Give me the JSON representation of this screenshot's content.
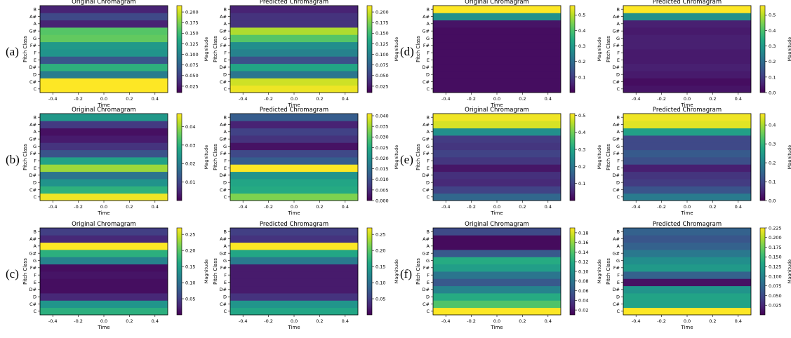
{
  "colormap": "viridis",
  "pitch_classes": [
    "C",
    "C#",
    "D",
    "D#",
    "E",
    "F",
    "F#",
    "G",
    "G#",
    "A",
    "A#",
    "B"
  ],
  "x_ticks": [
    "-0.4",
    "-0.2",
    "0.0",
    "0.2",
    "0.4"
  ],
  "chart_data": [
    {
      "panel": "(a)",
      "charts": [
        {
          "type": "heatmap",
          "title": "Original Chromagram",
          "xlabel": "Time",
          "ylabel": "Pitch Class",
          "xlim": [
            -0.5,
            0.5
          ],
          "values": [
            0.215,
            0.215,
            0.095,
            0.14,
            0.065,
            0.115,
            0.12,
            0.165,
            0.16,
            0.03,
            0.055,
            0.03
          ],
          "colorbar": {
            "label": "Magnitude",
            "min": 0.01,
            "max": 0.215,
            "ticks": [
              "0.025",
              "0.050",
              "0.075",
              "0.100",
              "0.125",
              "0.150",
              "0.175",
              "0.200"
            ]
          }
        },
        {
          "type": "heatmap",
          "title": "Predicted Chromagram",
          "xlabel": "Time",
          "ylabel": "Pitch Class",
          "xlim": [
            -0.5,
            0.5
          ],
          "values": [
            0.21,
            0.2,
            0.09,
            0.13,
            0.06,
            0.1,
            0.11,
            0.16,
            0.19,
            0.04,
            0.04,
            0.03
          ],
          "colorbar": {
            "label": "Magnitude",
            "min": 0.01,
            "max": 0.215,
            "ticks": [
              "0.025",
              "0.050",
              "0.075",
              "0.100",
              "0.125",
              "0.150",
              "0.175",
              "0.200"
            ]
          }
        }
      ]
    },
    {
      "panel": "(b)",
      "charts": [
        {
          "type": "heatmap",
          "title": "Original Chromagram",
          "xlabel": "Time",
          "ylabel": "Pitch Class",
          "xlim": [
            -0.5,
            0.5
          ],
          "values": [
            0.046,
            0.03,
            0.024,
            0.018,
            0.04,
            0.027,
            0.012,
            0.007,
            0.0035,
            0.002,
            0.008,
            0.025
          ],
          "colorbar": {
            "label": "Magnitude",
            "min": 0.0,
            "max": 0.047,
            "ticks": [
              "0.01",
              "0.02",
              "0.03",
              "0.04"
            ]
          }
        },
        {
          "type": "heatmap",
          "title": "Predicted Chromagram",
          "xlabel": "Time",
          "ylabel": "Pitch Class",
          "xlim": [
            -0.5,
            0.5
          ],
          "values": [
            0.033,
            0.025,
            0.024,
            0.021,
            0.041,
            0.012,
            0.009,
            0.002,
            0.006,
            0.008,
            0.004,
            0.012
          ],
          "colorbar": {
            "label": "Magnitude",
            "min": 0.0,
            "max": 0.041,
            "ticks": [
              "0.000",
              "0.005",
              "0.010",
              "0.015",
              "0.020",
              "0.025",
              "0.030",
              "0.035",
              "0.040"
            ]
          }
        }
      ]
    },
    {
      "panel": "(c)",
      "charts": [
        {
          "type": "heatmap",
          "title": "Original Chromagram",
          "xlabel": "Time",
          "ylabel": "Pitch Class",
          "xlim": [
            -0.5,
            0.5
          ],
          "values": [
            0.17,
            0.14,
            0.03,
            0.01,
            0.01,
            0.015,
            0.01,
            0.12,
            0.17,
            0.27,
            0.03,
            0.05
          ],
          "colorbar": {
            "label": "Magnitude",
            "min": 0.0,
            "max": 0.27,
            "ticks": [
              "0.05",
              "0.10",
              "0.15",
              "0.20",
              "0.25"
            ]
          }
        },
        {
          "type": "heatmap",
          "title": "Predicted Chromagram",
          "xlabel": "Time",
          "ylabel": "Pitch Class",
          "xlim": [
            -0.5,
            0.5
          ],
          "values": [
            0.16,
            0.14,
            0.04,
            0.02,
            0.02,
            0.02,
            0.02,
            0.11,
            0.16,
            0.27,
            0.04,
            0.05
          ],
          "colorbar": {
            "label": "Magnitude",
            "min": 0.0,
            "max": 0.27,
            "ticks": [
              "0.05",
              "0.10",
              "0.15",
              "0.20",
              "0.25"
            ]
          }
        }
      ]
    },
    {
      "panel": "(d)",
      "charts": [
        {
          "type": "heatmap",
          "title": "Original Chromagram",
          "xlabel": "Time",
          "ylabel": "Pitch Class",
          "xlim": [
            -0.5,
            0.5
          ],
          "values": [
            0.02,
            0.02,
            0.02,
            0.02,
            0.02,
            0.02,
            0.02,
            0.02,
            0.02,
            0.03,
            0.28,
            0.56
          ],
          "colorbar": {
            "label": "Magnitude",
            "min": 0.0,
            "max": 0.56,
            "ticks": [
              "0.1",
              "0.2",
              "0.3",
              "0.4",
              "0.5"
            ]
          }
        },
        {
          "type": "heatmap",
          "title": "Predicted Chromagram",
          "xlabel": "Time",
          "ylabel": "Pitch Class",
          "xlim": [
            -0.5,
            0.5
          ],
          "values": [
            0.03,
            0.02,
            0.04,
            0.05,
            0.04,
            0.04,
            0.05,
            0.05,
            0.04,
            0.05,
            0.28,
            0.56
          ],
          "colorbar": {
            "label": "Magnitude",
            "min": 0.0,
            "max": 0.56,
            "ticks": [
              "0.0",
              "0.1",
              "0.2",
              "0.3",
              "0.4",
              "0.5"
            ]
          }
        }
      ]
    },
    {
      "panel": "(e)",
      "charts": [
        {
          "type": "heatmap",
          "title": "Original Chromagram",
          "xlabel": "Time",
          "ylabel": "Pitch Class",
          "xlim": [
            -0.5,
            0.5
          ],
          "values": [
            0.17,
            0.1,
            0.06,
            0.07,
            0.03,
            0.08,
            0.1,
            0.08,
            0.09,
            0.25,
            0.48,
            0.5
          ],
          "colorbar": {
            "label": "Magnitude",
            "min": 0.0,
            "max": 0.51,
            "ticks": [
              "0.1",
              "0.2",
              "0.3",
              "0.4",
              "0.5"
            ]
          }
        },
        {
          "type": "heatmap",
          "title": "Predicted Chromagram",
          "xlabel": "Time",
          "ylabel": "Pitch Class",
          "xlim": [
            -0.5,
            0.5
          ],
          "values": [
            0.19,
            0.12,
            0.08,
            0.07,
            0.04,
            0.11,
            0.13,
            0.1,
            0.1,
            0.26,
            0.44,
            0.45
          ],
          "colorbar": {
            "label": "Magnitude",
            "min": 0.0,
            "max": 0.46,
            "ticks": [
              "0.0",
              "0.1",
              "0.2",
              "0.3",
              "0.4"
            ]
          }
        }
      ]
    },
    {
      "panel": "(f)",
      "charts": [
        {
          "type": "heatmap",
          "title": "Original Chromagram",
          "xlabel": "Time",
          "ylabel": "Pitch Class",
          "xlim": [
            -0.5,
            0.5
          ],
          "values": [
            0.19,
            0.14,
            0.12,
            0.09,
            0.06,
            0.08,
            0.11,
            0.12,
            0.06,
            0.015,
            0.015,
            0.05
          ],
          "colorbar": {
            "label": "Magnitude",
            "min": 0.01,
            "max": 0.19,
            "ticks": [
              "0.02",
              "0.04",
              "0.06",
              "0.08",
              "0.10",
              "0.12",
              "0.14",
              "0.16",
              "0.18"
            ]
          }
        },
        {
          "type": "heatmap",
          "title": "Predicted Chromagram",
          "xlabel": "Time",
          "ylabel": "Pitch Class",
          "xlim": [
            -0.5,
            0.5
          ],
          "values": [
            0.225,
            0.13,
            0.13,
            0.115,
            0.01,
            0.07,
            0.12,
            0.11,
            0.09,
            0.07,
            0.06,
            0.07
          ],
          "colorbar": {
            "label": "Magnitude",
            "min": 0.0,
            "max": 0.225,
            "ticks": [
              "0.025",
              "0.050",
              "0.075",
              "0.100",
              "0.125",
              "0.150",
              "0.175",
              "0.200",
              "0.225"
            ]
          }
        }
      ]
    }
  ]
}
